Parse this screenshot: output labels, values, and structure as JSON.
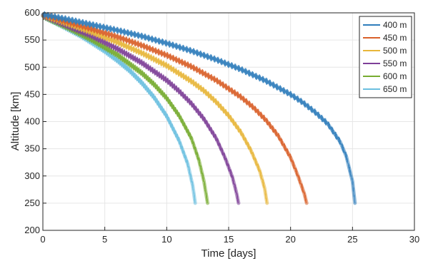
{
  "chart_data": {
    "type": "line",
    "xlabel": "Time [days]",
    "ylabel": "Altitude [km]",
    "xlim": [
      0,
      30
    ],
    "ylim": [
      200,
      600
    ],
    "xticks": [
      0,
      5,
      10,
      15,
      20,
      25,
      30
    ],
    "yticks": [
      200,
      250,
      300,
      350,
      400,
      450,
      500,
      550,
      600
    ],
    "grid": true,
    "legend_position": "top-right",
    "band_halfwidth_km": 6,
    "series": [
      {
        "name": "400 m",
        "color": "#2f7ebc",
        "x": [
          0,
          2,
          4,
          6,
          8,
          10,
          12,
          14,
          16,
          18,
          20,
          21,
          22,
          23,
          24,
          24.5,
          25,
          25.2
        ],
        "y": [
          597,
          588,
          578,
          568,
          557,
          544,
          530,
          514,
          496,
          475,
          450,
          435,
          417,
          396,
          363,
          336,
          290,
          250
        ]
      },
      {
        "name": "450 m",
        "color": "#d9602a",
        "x": [
          0,
          2,
          4,
          6,
          8,
          10,
          12,
          14,
          16,
          17,
          18,
          19,
          20,
          20.6,
          21.1,
          21.3
        ],
        "y": [
          596,
          583,
          570,
          556,
          540,
          522,
          501,
          476,
          445,
          426,
          403,
          374,
          334,
          300,
          268,
          250
        ]
      },
      {
        "name": "500 m",
        "color": "#e8b73a",
        "x": [
          0,
          2,
          4,
          6,
          8,
          10,
          12,
          13,
          14,
          15,
          16,
          16.8,
          17.5,
          17.9,
          18.1
        ],
        "y": [
          596,
          580,
          564,
          546,
          526,
          503,
          474,
          457,
          436,
          411,
          380,
          347,
          310,
          278,
          250
        ]
      },
      {
        "name": "550 m",
        "color": "#7e3f98",
        "x": [
          0,
          2,
          4,
          6,
          8,
          10,
          11,
          12,
          13,
          14,
          14.7,
          15.3,
          15.6,
          15.8
        ],
        "y": [
          595,
          576,
          557,
          534,
          508,
          476,
          456,
          433,
          405,
          369,
          334,
          298,
          272,
          250
        ]
      },
      {
        "name": "600 m",
        "color": "#77ac30",
        "x": [
          0,
          2,
          4,
          6,
          8,
          9,
          10,
          11,
          12,
          12.6,
          13.0,
          13.3
        ],
        "y": [
          594,
          573,
          550,
          523,
          489,
          468,
          443,
          411,
          369,
          329,
          291,
          250
        ]
      },
      {
        "name": "650 m",
        "color": "#6bbfe0",
        "x": [
          0,
          1,
          2,
          3,
          4,
          5,
          6,
          7,
          8,
          9,
          10,
          11,
          11.7,
          12.1,
          12.3
        ],
        "y": [
          594,
          583,
          571,
          559,
          545,
          530,
          513,
          494,
          471,
          444,
          410,
          365,
          322,
          282,
          250
        ]
      }
    ]
  }
}
